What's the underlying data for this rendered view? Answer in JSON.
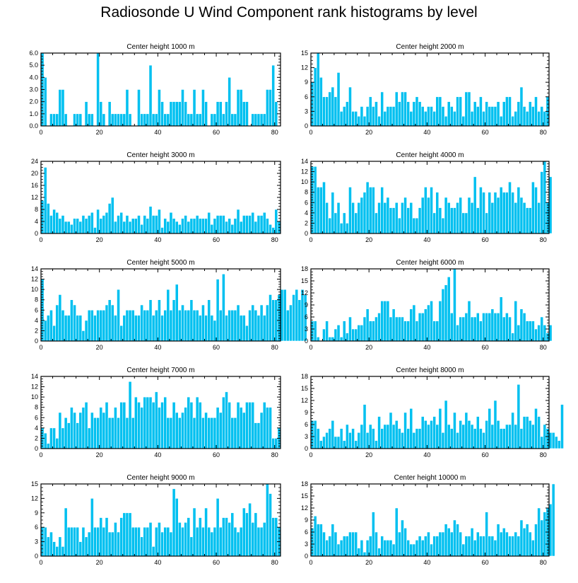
{
  "title": "Radiosonde U Wind Component rank histograms by level",
  "colors": {
    "bar": "#00c0f0",
    "bar_edge": "#ffffff",
    "frame": "#000000"
  },
  "chart_data": [
    {
      "type": "bar",
      "title": "Center height 1000 m",
      "xlim": [
        0,
        82
      ],
      "ylim": [
        0,
        6
      ],
      "xticks": [
        "0",
        "20",
        "40",
        "60",
        "80"
      ],
      "yticks": [
        "0.0",
        "1.0",
        "2.0",
        "3.0",
        "4.0",
        "5.0",
        "6.0"
      ],
      "values": [
        6,
        4,
        0,
        1,
        1,
        1,
        3,
        3,
        1,
        0,
        0,
        1,
        1,
        1,
        0,
        2,
        1,
        1,
        0,
        6,
        2,
        1,
        0,
        2,
        1,
        1,
        1,
        1,
        1,
        3,
        1,
        0,
        0,
        3,
        1,
        1,
        1,
        5,
        1,
        1,
        3,
        2,
        1,
        1,
        2,
        2,
        2,
        2,
        3,
        2,
        1,
        1,
        3,
        1,
        1,
        3,
        2,
        0,
        1,
        1,
        2,
        2,
        1,
        2,
        4,
        1,
        1,
        3,
        3,
        2,
        2,
        0,
        1,
        1,
        1,
        1,
        1,
        3,
        3,
        5,
        2
      ]
    },
    {
      "type": "bar",
      "title": "Center height 2000 m",
      "xlim": [
        0,
        82
      ],
      "ylim": [
        0,
        15
      ],
      "xticks": [
        "0",
        "20",
        "40",
        "60",
        "80"
      ],
      "yticks": [
        "0",
        "3",
        "6",
        "9",
        "12",
        "15"
      ],
      "values": [
        9,
        12,
        15,
        10,
        6,
        6,
        7,
        8,
        6,
        11,
        3,
        4,
        5,
        8,
        3,
        3,
        2,
        4,
        2,
        4,
        6,
        4,
        5,
        2,
        7,
        3,
        4,
        4,
        4,
        7,
        5,
        7,
        7,
        5,
        3,
        5,
        6,
        5,
        4,
        3,
        4,
        4,
        3,
        6,
        6,
        4,
        2,
        5,
        4,
        3,
        6,
        6,
        2,
        7,
        7,
        3,
        5,
        4,
        6,
        3,
        5,
        4,
        4,
        4,
        5,
        2,
        5,
        6,
        6,
        2,
        3,
        5,
        8,
        4,
        3,
        5,
        4,
        6,
        3,
        4,
        3,
        6
      ]
    },
    {
      "type": "bar",
      "title": "Center height 3000 m",
      "xlim": [
        0,
        82
      ],
      "ylim": [
        0,
        24
      ],
      "xticks": [
        "0",
        "20",
        "40",
        "60",
        "80"
      ],
      "yticks": [
        "0",
        "4",
        "8",
        "12",
        "16",
        "20",
        "24"
      ],
      "values": [
        11,
        22,
        10,
        6,
        8,
        7,
        5,
        6,
        4,
        4,
        3,
        5,
        5,
        4,
        6,
        5,
        6,
        7,
        2,
        8,
        5,
        6,
        7,
        10,
        12,
        4,
        6,
        7,
        4,
        6,
        4,
        5,
        5,
        6,
        3,
        6,
        5,
        9,
        6,
        6,
        8,
        2,
        5,
        4,
        7,
        5,
        4,
        3,
        5,
        6,
        4,
        5,
        5,
        6,
        5,
        5,
        5,
        7,
        3,
        5,
        6,
        6,
        6,
        4,
        5,
        3,
        5,
        8,
        4,
        6,
        6,
        6,
        7,
        4,
        6,
        6,
        7,
        5,
        3,
        2,
        8,
        4
      ]
    },
    {
      "type": "bar",
      "title": "Center height 4000 m",
      "xlim": [
        0,
        82
      ],
      "ylim": [
        0,
        14
      ],
      "xticks": [
        "0",
        "20",
        "40",
        "60",
        "80"
      ],
      "yticks": [
        "0",
        "2",
        "4",
        "6",
        "8",
        "10",
        "12",
        "14"
      ],
      "values": [
        13,
        13,
        9,
        9,
        10,
        6,
        3,
        8,
        4,
        6,
        2,
        4,
        2,
        9,
        6,
        4,
        6,
        7,
        8,
        10,
        9,
        9,
        4,
        6,
        9,
        6,
        7,
        5,
        5,
        6,
        3,
        6,
        7,
        5,
        6,
        3,
        3,
        5,
        7,
        9,
        7,
        9,
        4,
        8,
        5,
        3,
        7,
        6,
        5,
        5,
        6,
        7,
        4,
        4,
        7,
        6,
        11,
        5,
        9,
        8,
        4,
        8,
        6,
        8,
        7,
        9,
        8,
        8,
        10,
        8,
        6,
        9,
        7,
        6,
        5,
        5,
        10,
        9,
        6,
        12,
        14,
        6,
        11
      ]
    },
    {
      "type": "bar",
      "title": "Center height 5000 m",
      "xlim": [
        0,
        82
      ],
      "ylim": [
        0,
        14
      ],
      "xticks": [
        "0",
        "20",
        "40",
        "60",
        "80"
      ],
      "yticks": [
        "0",
        "2",
        "4",
        "6",
        "8",
        "10",
        "12",
        "14"
      ],
      "values": [
        12,
        4,
        5,
        6,
        3,
        7,
        9,
        6,
        5,
        5,
        8,
        7,
        5,
        5,
        2,
        4,
        6,
        6,
        5,
        6,
        6,
        6,
        7,
        8,
        7,
        5,
        10,
        3,
        5,
        6,
        6,
        6,
        5,
        5,
        7,
        6,
        6,
        8,
        5,
        6,
        8,
        5,
        6,
        10,
        6,
        8,
        11,
        6,
        7,
        6,
        6,
        8,
        6,
        6,
        5,
        7,
        5,
        8,
        5,
        4,
        12,
        6,
        13,
        5,
        6,
        6,
        6,
        7,
        5,
        5,
        3,
        6,
        7,
        6,
        5,
        7,
        5,
        7,
        9,
        8,
        8,
        9,
        10,
        10,
        6,
        7,
        9,
        10,
        8,
        10,
        9
      ]
    },
    {
      "type": "bar",
      "title": "Center height 6000 m",
      "xlim": [
        0,
        82
      ],
      "ylim": [
        0,
        18
      ],
      "xticks": [
        "0",
        "20",
        "40",
        "60",
        "80"
      ],
      "yticks": [
        "0",
        "3",
        "6",
        "9",
        "12",
        "15",
        "18"
      ],
      "values": [
        5,
        5,
        1,
        0,
        3,
        5,
        1,
        1,
        3,
        4,
        1,
        5,
        2,
        6,
        3,
        3,
        4,
        4,
        6,
        8,
        5,
        5,
        6,
        7,
        10,
        10,
        10,
        6,
        8,
        6,
        6,
        6,
        5,
        5,
        8,
        9,
        5,
        7,
        7,
        8,
        9,
        10,
        5,
        5,
        10,
        13,
        14,
        16,
        7,
        18,
        4,
        6,
        6,
        7,
        10,
        6,
        6,
        7,
        5,
        7,
        7,
        7,
        8,
        7,
        7,
        11,
        6,
        7,
        6,
        2,
        10,
        4,
        8,
        7,
        5,
        5,
        5,
        3,
        4,
        6,
        4,
        2,
        4
      ]
    },
    {
      "type": "bar",
      "title": "Center height 7000 m",
      "xlim": [
        0,
        82
      ],
      "ylim": [
        0,
        14
      ],
      "xticks": [
        "0",
        "20",
        "40",
        "60",
        "80"
      ],
      "yticks": [
        "0",
        "2",
        "4",
        "6",
        "8",
        "10",
        "12",
        "14"
      ],
      "values": [
        4,
        3,
        1,
        4,
        4,
        2,
        7,
        4,
        6,
        5,
        8,
        7,
        5,
        7,
        8,
        9,
        4,
        7,
        6,
        6,
        8,
        7,
        9,
        6,
        6,
        8,
        6,
        9,
        9,
        6,
        13,
        6,
        10,
        9,
        8,
        10,
        10,
        10,
        9,
        11,
        8,
        9,
        10,
        6,
        6,
        9,
        7,
        6,
        7,
        8,
        10,
        9,
        6,
        10,
        9,
        6,
        7,
        6,
        6,
        6,
        8,
        7,
        10,
        11,
        9,
        6,
        6,
        9,
        8,
        7,
        9,
        9,
        9,
        5,
        5,
        7,
        9,
        8,
        8,
        2,
        2,
        4
      ]
    },
    {
      "type": "bar",
      "title": "Center height 8000 m",
      "xlim": [
        0,
        82
      ],
      "ylim": [
        0,
        18
      ],
      "xticks": [
        "0",
        "20",
        "40",
        "60",
        "80"
      ],
      "yticks": [
        "0",
        "3",
        "6",
        "9",
        "12",
        "15",
        "18"
      ],
      "values": [
        7,
        7,
        5,
        2,
        3,
        4,
        5,
        7,
        3,
        3,
        5,
        2,
        6,
        4,
        5,
        2,
        4,
        6,
        11,
        4,
        6,
        5,
        2,
        8,
        5,
        6,
        6,
        9,
        6,
        7,
        5,
        4,
        9,
        5,
        10,
        4,
        5,
        5,
        8,
        7,
        6,
        7,
        8,
        6,
        10,
        4,
        12,
        6,
        5,
        9,
        4,
        7,
        6,
        9,
        7,
        6,
        5,
        8,
        5,
        4,
        7,
        10,
        6,
        12,
        7,
        5,
        5,
        6,
        6,
        9,
        6,
        16,
        5,
        8,
        8,
        7,
        6,
        10,
        8,
        3,
        6,
        5,
        4,
        4,
        3,
        2,
        11
      ]
    },
    {
      "type": "bar",
      "title": "Center height 9000 m",
      "xlim": [
        0,
        82
      ],
      "ylim": [
        0,
        15
      ],
      "xticks": [
        "0",
        "20",
        "40",
        "60",
        "80"
      ],
      "yticks": [
        "0",
        "3",
        "6",
        "9",
        "12",
        "15"
      ],
      "values": [
        6,
        6,
        4,
        5,
        3,
        2,
        4,
        2,
        10,
        6,
        6,
        6,
        6,
        3,
        6,
        4,
        5,
        12,
        6,
        6,
        8,
        6,
        8,
        5,
        5,
        7,
        5,
        8,
        9,
        9,
        9,
        6,
        6,
        6,
        4,
        6,
        6,
        7,
        2,
        6,
        7,
        5,
        6,
        6,
        5,
        14,
        12,
        7,
        6,
        7,
        8,
        4,
        10,
        6,
        8,
        6,
        10,
        6,
        5,
        6,
        12,
        6,
        8,
        8,
        7,
        9,
        6,
        5,
        6,
        10,
        9,
        11,
        7,
        9,
        6,
        6,
        7,
        15,
        13,
        8,
        8,
        6
      ]
    },
    {
      "type": "bar",
      "title": "Center height 10000 m",
      "xlim": [
        0,
        82
      ],
      "ylim": [
        0,
        18
      ],
      "xticks": [
        "0",
        "20",
        "40",
        "60",
        "80"
      ],
      "yticks": [
        "0",
        "3",
        "6",
        "9",
        "12",
        "15",
        "18"
      ],
      "values": [
        7,
        10,
        8,
        8,
        6,
        4,
        5,
        8,
        6,
        3,
        4,
        5,
        5,
        6,
        6,
        6,
        2,
        4,
        1,
        4,
        5,
        11,
        6,
        2,
        5,
        4,
        4,
        4,
        3,
        12,
        6,
        9,
        7,
        4,
        3,
        3,
        4,
        5,
        4,
        5,
        6,
        3,
        5,
        5,
        6,
        6,
        8,
        7,
        6,
        9,
        8,
        6,
        3,
        5,
        5,
        7,
        4,
        6,
        5,
        5,
        11,
        5,
        5,
        4,
        8,
        6,
        7,
        6,
        5,
        5,
        6,
        5,
        9,
        7,
        8,
        6,
        4,
        8,
        12,
        9,
        11,
        12,
        13,
        18
      ]
    }
  ]
}
